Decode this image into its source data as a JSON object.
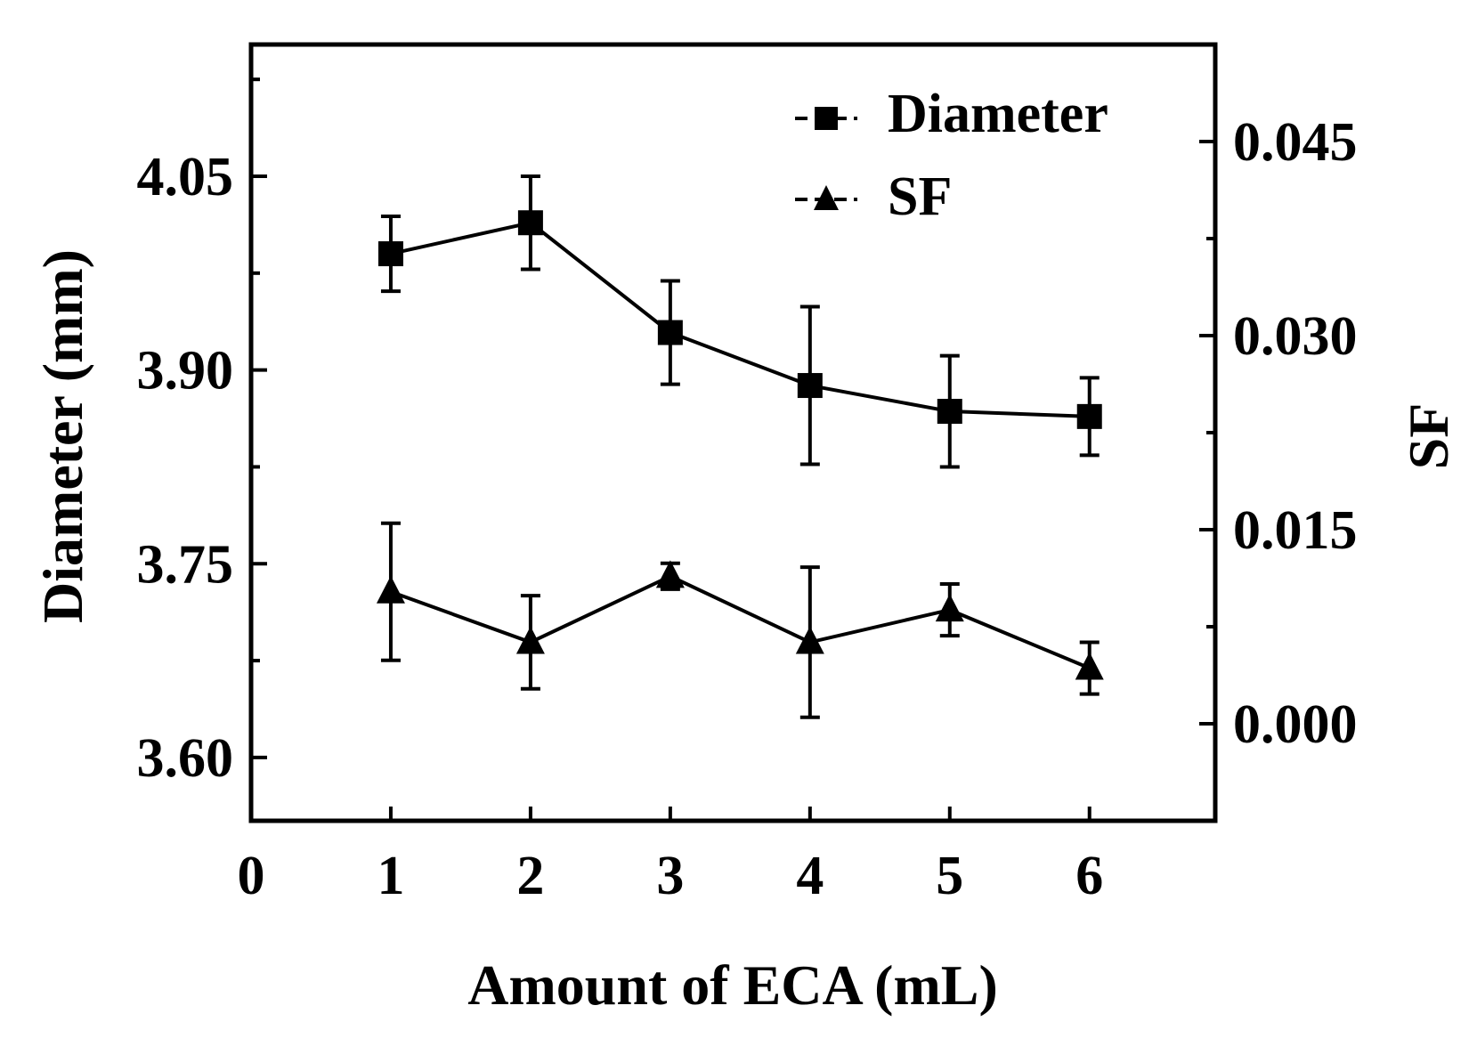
{
  "chart_data": {
    "type": "line",
    "xlabel": "Amount of ECA (mL)",
    "ylabel": "Diameter (mm)",
    "y2label": "SF",
    "xlim": [
      0,
      6.9
    ],
    "ylim": [
      3.551,
      4.152
    ],
    "y2lim": [
      -0.0075,
      0.0525
    ],
    "x_ticks": [
      0,
      1,
      2,
      3,
      4,
      5,
      6
    ],
    "x_tick_labels": [
      "0",
      "1",
      "2",
      "3",
      "4",
      "5",
      "6"
    ],
    "y_ticks": [
      3.6,
      3.75,
      3.9,
      4.05
    ],
    "y_tick_labels": [
      "3.60",
      "3.75",
      "3.90",
      "4.05"
    ],
    "y2_ticks": [
      0.0,
      0.015,
      0.03,
      0.045
    ],
    "y2_tick_labels": [
      "0.000",
      "0.015",
      "0.030",
      "0.045"
    ],
    "legend_position": "top-right",
    "series": [
      {
        "name": "Diameter",
        "marker": "square",
        "axis": "left",
        "x": [
          1,
          2,
          3,
          4,
          5,
          6
        ],
        "values": [
          3.99,
          4.014,
          3.929,
          3.888,
          3.868,
          3.864
        ],
        "errors": [
          0.029,
          0.036,
          0.04,
          0.061,
          0.043,
          0.03
        ]
      },
      {
        "name": "SF",
        "marker": "triangle",
        "axis": "right",
        "x": [
          1,
          2,
          3,
          4,
          5,
          6
        ],
        "values": [
          0.0102,
          0.0063,
          0.0114,
          0.0063,
          0.0088,
          0.0043
        ],
        "errors": [
          0.0053,
          0.0036,
          0.001,
          0.0058,
          0.002,
          0.002
        ]
      }
    ]
  }
}
